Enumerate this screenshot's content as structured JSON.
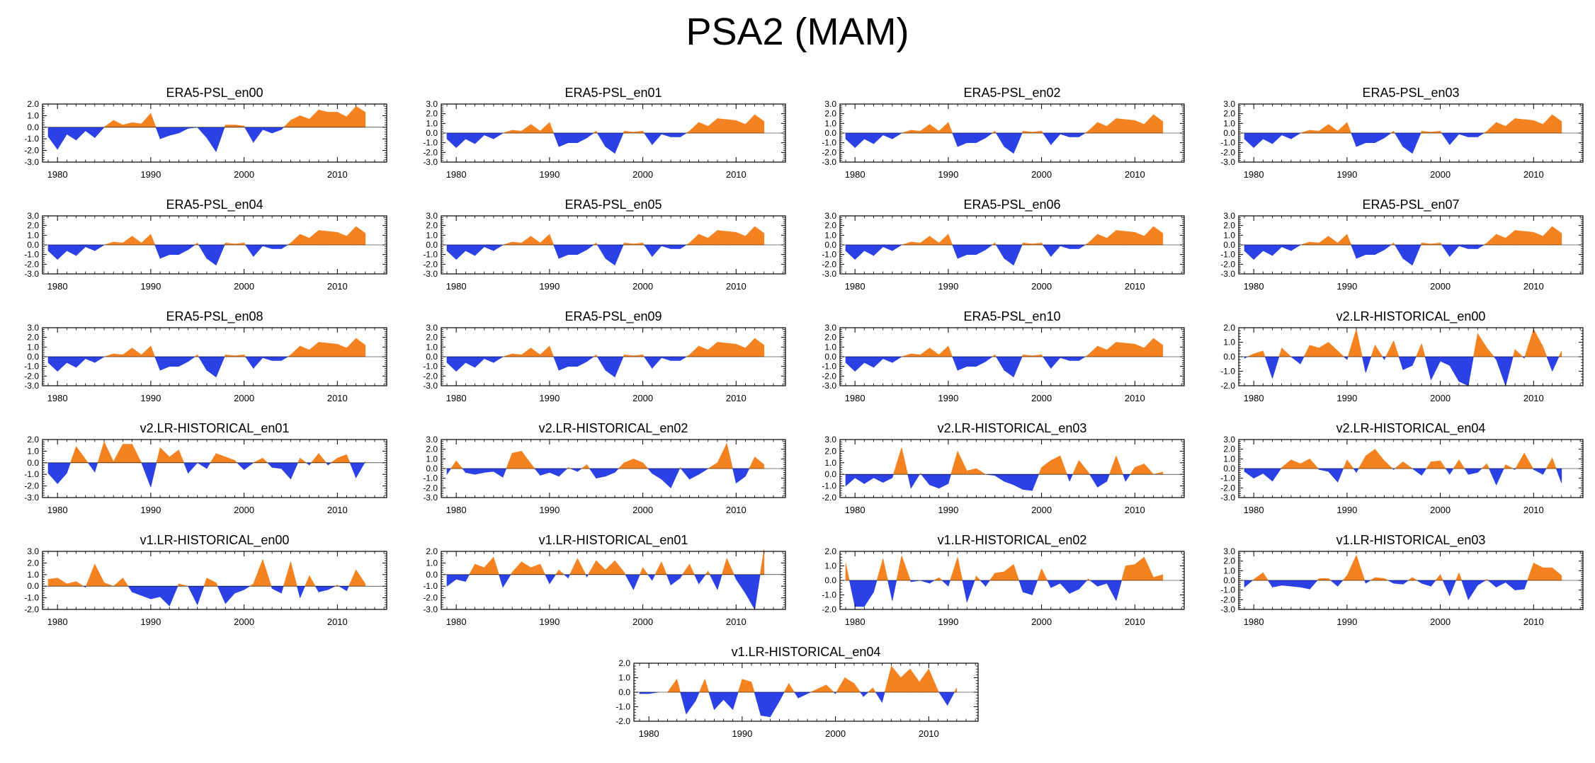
{
  "title": "PSA2 (MAM)",
  "colors": {
    "positive": "#f58220",
    "negative": "#2b41e6",
    "axis": "#000000",
    "zero_line": "#000000"
  },
  "chart_data": {
    "type": "area",
    "title": "PSA2 (MAM)",
    "x_range": [
      1979,
      2014
    ],
    "x_ticks": [
      1980,
      1990,
      2000,
      2010
    ],
    "x_tick_labels": [
      "1980",
      "1990",
      "2000",
      "2010"
    ],
    "y_axes": {
      "A": {
        "ylim": [
          -3,
          2
        ],
        "ticks": [
          -3,
          -2,
          -1,
          0,
          1,
          2
        ],
        "labels": [
          "-3.0",
          "-2.0",
          "-1.0",
          "0.0",
          "1.0",
          "2.0"
        ]
      },
      "B": {
        "ylim": [
          -3,
          3
        ],
        "ticks": [
          -3,
          -2,
          -1,
          0,
          1,
          2,
          3
        ],
        "labels": [
          "-3.0",
          "-2.0",
          "-1.0",
          "0.0",
          "1.0",
          "2.0",
          "3.0"
        ]
      },
      "C": {
        "ylim": [
          -2,
          2
        ],
        "ticks": [
          -2,
          -1,
          0,
          1,
          2
        ],
        "labels": [
          "-2.0",
          "-1.0",
          "0.0",
          "1.0",
          "2.0"
        ]
      },
      "D": {
        "ylim": [
          -2,
          3
        ],
        "ticks": [
          -2,
          -1,
          0,
          1,
          2,
          3
        ],
        "labels": [
          "-2.0",
          "-1.0",
          "0.0",
          "1.0",
          "2.0",
          "3.0"
        ]
      }
    },
    "series_library": {
      "era5": [
        -0.8,
        -1.9,
        -0.6,
        -1.1,
        -0.3,
        -0.9,
        0.0,
        0.6,
        0.2,
        0.4,
        0.3,
        1.2,
        -1.0,
        -0.7,
        -0.5,
        -0.1,
        0.0,
        -0.9,
        -2.1,
        0.2,
        0.2,
        0.1,
        -1.3,
        -0.2,
        -0.5,
        -0.2,
        0.6,
        1.0,
        0.7,
        1.5,
        1.3,
        1.3,
        0.9,
        1.8,
        1.3
      ],
      "era5b": [
        -0.6,
        -1.5,
        -0.6,
        -1.1,
        -0.2,
        -0.6,
        0.0,
        0.3,
        0.2,
        0.9,
        0.2,
        1.1,
        -1.4,
        -1.0,
        -1.0,
        -0.5,
        0.2,
        -1.4,
        -2.1,
        0.2,
        0.1,
        0.2,
        -1.2,
        -0.1,
        -0.4,
        -0.4,
        0.2,
        1.1,
        0.7,
        1.5,
        1.4,
        1.3,
        0.9,
        1.9,
        1.2
      ],
      "v2h00": [
        -0.1,
        0.2,
        0.4,
        -1.5,
        0.6,
        0.0,
        -0.5,
        0.8,
        0.6,
        1.0,
        0.4,
        -0.2,
        1.9,
        -1.1,
        0.8,
        -0.2,
        1.1,
        -0.9,
        -0.6,
        0.9,
        -1.6,
        -0.3,
        -0.6,
        -1.7,
        -2.0,
        1.6,
        0.6,
        -0.2,
        -2.0,
        0.5,
        -0.1,
        1.9,
        0.7,
        -1.0,
        0.4
      ],
      "v2h01": [
        -0.9,
        -1.8,
        -0.9,
        1.4,
        0.3,
        -0.8,
        1.8,
        0.1,
        1.6,
        1.6,
        0.0,
        -2.1,
        1.3,
        0.5,
        1.1,
        -0.9,
        0.0,
        -0.5,
        0.8,
        0.5,
        0.2,
        -0.6,
        0.0,
        0.4,
        -0.4,
        -0.5,
        -1.4,
        0.4,
        -0.2,
        0.8,
        -0.2,
        0.4,
        0.7,
        -1.3,
        0.1
      ],
      "v2h02": [
        -0.6,
        0.8,
        -0.4,
        -0.6,
        -0.4,
        -0.3,
        -0.9,
        1.6,
        1.8,
        0.5,
        -0.7,
        -0.4,
        -0.8,
        0.1,
        -0.3,
        0.4,
        -1.0,
        -0.8,
        -0.4,
        0.6,
        1.0,
        0.6,
        -0.5,
        -1.1,
        -2.0,
        0.1,
        -1.1,
        -0.6,
        0.0,
        0.6,
        2.6,
        -1.5,
        -0.8,
        1.2,
        0.4
      ],
      "v2h03": [
        -1.0,
        -0.3,
        -0.8,
        -0.3,
        -0.7,
        -0.3,
        2.3,
        -1.2,
        0.1,
        -0.9,
        -1.2,
        -0.8,
        2.0,
        0.3,
        0.5,
        0.0,
        -0.1,
        -0.6,
        -0.9,
        -1.3,
        -1.4,
        0.6,
        1.2,
        1.6,
        -0.6,
        1.2,
        0.2,
        -1.1,
        -0.6,
        1.6,
        -0.6,
        0.6,
        0.9,
        0.0,
        0.2
      ],
      "v2h04": [
        -0.3,
        -1.0,
        -0.5,
        -1.3,
        0.1,
        0.9,
        0.5,
        1.0,
        -0.1,
        -0.3,
        -1.4,
        0.9,
        -0.4,
        1.3,
        2.0,
        0.8,
        -0.1,
        0.7,
        0.0,
        -0.7,
        0.7,
        0.8,
        -0.6,
        0.9,
        -0.6,
        -0.4,
        0.5,
        -1.7,
        0.4,
        -0.1,
        1.6,
        -0.1,
        -0.6,
        1.1,
        -1.5
      ],
      "v1h00": [
        0.6,
        0.7,
        0.2,
        0.4,
        -0.1,
        1.9,
        0.3,
        0.0,
        0.7,
        -0.5,
        -0.8,
        -1.1,
        -0.9,
        -1.7,
        0.2,
        0.0,
        -1.6,
        0.7,
        0.3,
        -1.5,
        -0.6,
        -0.3,
        0.2,
        2.3,
        -0.2,
        -0.6,
        2.1,
        -1.0,
        0.9,
        -0.5,
        -0.3,
        0.1,
        -0.4,
        1.4,
        0.2
      ],
      "v1h01": [
        -1.0,
        -0.4,
        -0.6,
        0.9,
        0.6,
        1.5,
        -1.1,
        0.2,
        1.1,
        0.6,
        0.9,
        -0.8,
        0.4,
        -0.3,
        1.4,
        -0.2,
        1.2,
        0.4,
        1.2,
        0.2,
        -1.3,
        0.6,
        -0.5,
        1.1,
        -0.9,
        -0.3,
        0.9,
        -0.8,
        0.3,
        -1.3,
        1.4,
        -0.4,
        -1.6,
        -3.0,
        2.2
      ],
      "v1h02": [
        1.2,
        -1.8,
        -1.8,
        -0.8,
        1.5,
        -1.4,
        1.7,
        -0.1,
        0.0,
        -0.2,
        0.2,
        -0.4,
        1.6,
        -1.5,
        0.3,
        -0.4,
        0.5,
        0.6,
        1.1,
        -0.8,
        -1.0,
        0.8,
        -0.5,
        -0.2,
        -0.9,
        -0.6,
        0.1,
        -0.4,
        -0.2,
        -1.4,
        1.0,
        1.1,
        1.6,
        0.2,
        0.4
      ],
      "v1h03": [
        -0.7,
        0.1,
        0.8,
        -0.7,
        -0.5,
        -0.6,
        -0.7,
        -0.9,
        0.2,
        0.2,
        -0.6,
        0.5,
        2.6,
        -0.3,
        0.3,
        0.2,
        -0.3,
        -0.4,
        0.3,
        -0.3,
        -0.6,
        0.6,
        -1.6,
        0.8,
        -2.0,
        -0.5,
        0.1,
        -0.7,
        -0.2,
        -1.0,
        -0.9,
        1.8,
        1.3,
        1.3,
        0.5
      ],
      "v1h04": [
        -0.1,
        -0.1,
        0.0,
        0.0,
        0.9,
        -1.5,
        -0.6,
        0.9,
        -1.2,
        -0.5,
        -1.2,
        0.9,
        0.7,
        -1.6,
        -1.7,
        -0.6,
        0.6,
        -0.4,
        -0.1,
        0.2,
        0.5,
        -0.1,
        1.0,
        0.6,
        -0.3,
        0.3,
        -0.7,
        1.8,
        1.0,
        1.6,
        0.7,
        1.6,
        0.1,
        -0.9,
        0.3
      ]
    },
    "panels": [
      {
        "name": "ERA5-PSL_en00",
        "axis": "A",
        "series": "era5"
      },
      {
        "name": "ERA5-PSL_en01",
        "axis": "B",
        "series": "era5b"
      },
      {
        "name": "ERA5-PSL_en02",
        "axis": "B",
        "series": "era5b"
      },
      {
        "name": "ERA5-PSL_en03",
        "axis": "B",
        "series": "era5b"
      },
      {
        "name": "ERA5-PSL_en04",
        "axis": "B",
        "series": "era5b"
      },
      {
        "name": "ERA5-PSL_en05",
        "axis": "B",
        "series": "era5b"
      },
      {
        "name": "ERA5-PSL_en06",
        "axis": "B",
        "series": "era5b"
      },
      {
        "name": "ERA5-PSL_en07",
        "axis": "B",
        "series": "era5b"
      },
      {
        "name": "ERA5-PSL_en08",
        "axis": "B",
        "series": "era5b"
      },
      {
        "name": "ERA5-PSL_en09",
        "axis": "B",
        "series": "era5b"
      },
      {
        "name": "ERA5-PSL_en10",
        "axis": "B",
        "series": "era5b"
      },
      {
        "name": "v2.LR-HISTORICAL_en00",
        "axis": "C",
        "series": "v2h00"
      },
      {
        "name": "v2.LR-HISTORICAL_en01",
        "axis": "A",
        "series": "v2h01"
      },
      {
        "name": "v2.LR-HISTORICAL_en02",
        "axis": "B",
        "series": "v2h02"
      },
      {
        "name": "v2.LR-HISTORICAL_en03",
        "axis": "D",
        "series": "v2h03"
      },
      {
        "name": "v2.LR-HISTORICAL_en04",
        "axis": "B",
        "series": "v2h04"
      },
      {
        "name": "v1.LR-HISTORICAL_en00",
        "axis": "D",
        "series": "v1h00"
      },
      {
        "name": "v1.LR-HISTORICAL_en01",
        "axis": "A",
        "series": "v1h01"
      },
      {
        "name": "v1.LR-HISTORICAL_en02",
        "axis": "C",
        "series": "v1h02"
      },
      {
        "name": "v1.LR-HISTORICAL_en03",
        "axis": "B",
        "series": "v1h03"
      },
      {
        "name": "v1.LR-HISTORICAL_en04",
        "axis": "C",
        "series": "v1h04"
      }
    ]
  }
}
